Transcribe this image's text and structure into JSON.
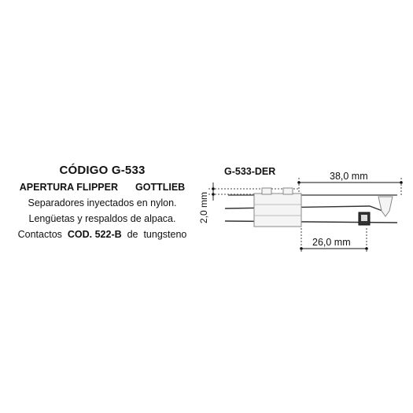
{
  "info": {
    "code": "CÓDIGO G-533",
    "subtitle_left": "APERTURA FLIPPER",
    "subtitle_right": "GOTTLIEB",
    "line1": "Separadores inyectados en nylon.",
    "line2": "Lengüetas y respaldos de alpaca.",
    "line3_prefix": "Contactos",
    "line3_code": "COD. 522-B",
    "line3_mid": "de",
    "line3_suffix": "tungsteno"
  },
  "diagram": {
    "part_label": "G-533-DER",
    "dim_length_top": "38,0 mm",
    "dim_length_bottom": "26,0 mm",
    "dim_gap": "2,0 mm"
  }
}
